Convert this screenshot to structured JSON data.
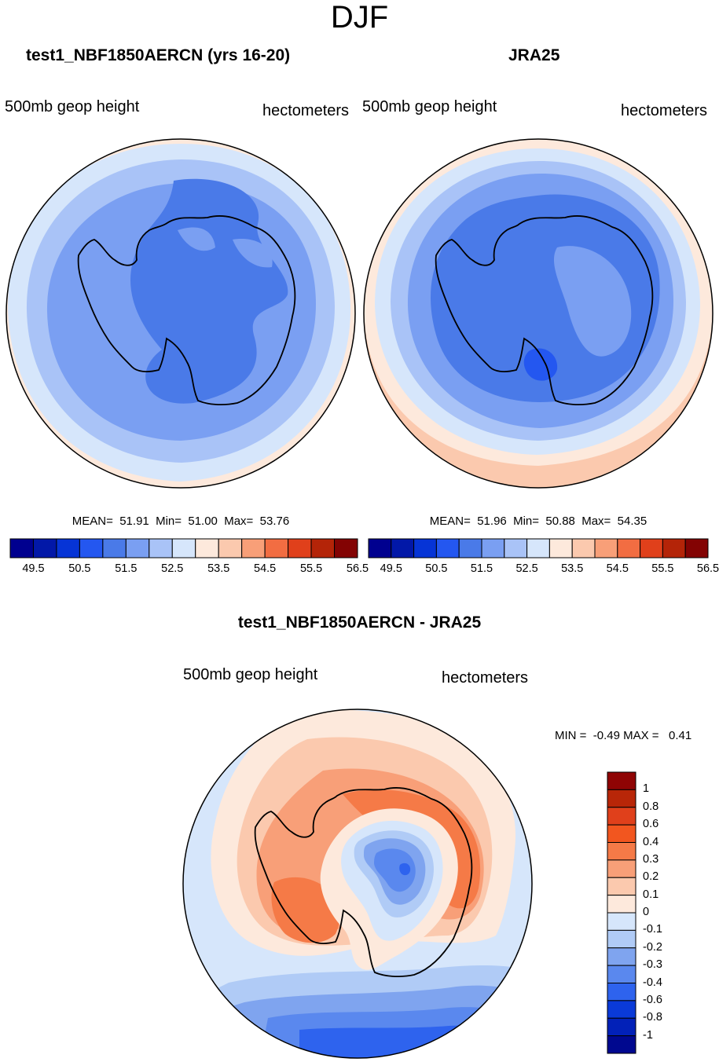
{
  "figure": {
    "title": "DJF"
  },
  "chart_data": [
    {
      "type": "heatmap",
      "projection": "south-polar-stereographic",
      "title": "test1_NBF1850AERCN (yrs 16-20)",
      "left_label": "500mb geop height",
      "right_label": "hectometers",
      "stats": {
        "mean": "51.91",
        "min": "51.00",
        "max": "53.76"
      },
      "stats_text": "MEAN=  51.91  Min=  51.00  Max=  53.76",
      "colorbar": {
        "orientation": "horizontal",
        "levels": [
          49.5,
          50,
          50.5,
          51,
          51.5,
          52,
          52.5,
          53,
          53.5,
          54,
          54.5,
          55,
          55.5,
          56,
          56.5
        ],
        "tick_labels": [
          "49.5",
          "50.5",
          "51.5",
          "52.5",
          "53.5",
          "54.5",
          "55.5",
          "56.5"
        ],
        "colors": [
          "#00008f",
          "#0218a8",
          "#0634d6",
          "#2457f0",
          "#4a7ae8",
          "#7a9ff2",
          "#a9c3f7",
          "#d6e6fb",
          "#fde9dc",
          "#fbc9ae",
          "#f89f78",
          "#f26d42",
          "#e0401b",
          "#b42408",
          "#830303"
        ]
      }
    },
    {
      "type": "heatmap",
      "projection": "south-polar-stereographic",
      "title": "JRA25",
      "left_label": "500mb geop height",
      "right_label": "hectometers",
      "stats": {
        "mean": "51.96",
        "min": "50.88",
        "max": "54.35"
      },
      "stats_text": "MEAN=  51.96  Min=  50.88  Max=  54.35",
      "colorbar": {
        "orientation": "horizontal",
        "levels": [
          49.5,
          50,
          50.5,
          51,
          51.5,
          52,
          52.5,
          53,
          53.5,
          54,
          54.5,
          55,
          55.5,
          56,
          56.5
        ],
        "tick_labels": [
          "49.5",
          "50.5",
          "51.5",
          "52.5",
          "53.5",
          "54.5",
          "55.5",
          "56.5"
        ],
        "colors": [
          "#00008f",
          "#0218a8",
          "#0634d6",
          "#2457f0",
          "#4a7ae8",
          "#7a9ff2",
          "#a9c3f7",
          "#d6e6fb",
          "#fde9dc",
          "#fbc9ae",
          "#f89f78",
          "#f26d42",
          "#e0401b",
          "#b42408",
          "#830303"
        ]
      }
    },
    {
      "type": "heatmap",
      "projection": "south-polar-stereographic",
      "title": "test1_NBF1850AERCN - JRA25",
      "left_label": "500mb geop height",
      "right_label": "hectometers",
      "stats": {
        "min": "-0.49",
        "max": "0.41"
      },
      "stats_text": "MIN =  -0.49 MAX =   0.41",
      "colorbar": {
        "orientation": "vertical",
        "tick_labels": [
          "1",
          "0.8",
          "0.6",
          "0.4",
          "0.3",
          "0.2",
          "0.1",
          "0",
          "-0.1",
          "-0.2",
          "-0.3",
          "-0.4",
          "-0.6",
          "-0.8",
          "-1"
        ],
        "colors": [
          "#8f0404",
          "#b82608",
          "#e0401b",
          "#f2561f",
          "#f57a47",
          "#f89f78",
          "#fbc9ae",
          "#fde9dc",
          "#d6e6fb",
          "#b0cbf6",
          "#7fa4ef",
          "#5a88ee",
          "#2e63ee",
          "#0a3ad8",
          "#0221b8",
          "#00088f"
        ]
      }
    }
  ]
}
